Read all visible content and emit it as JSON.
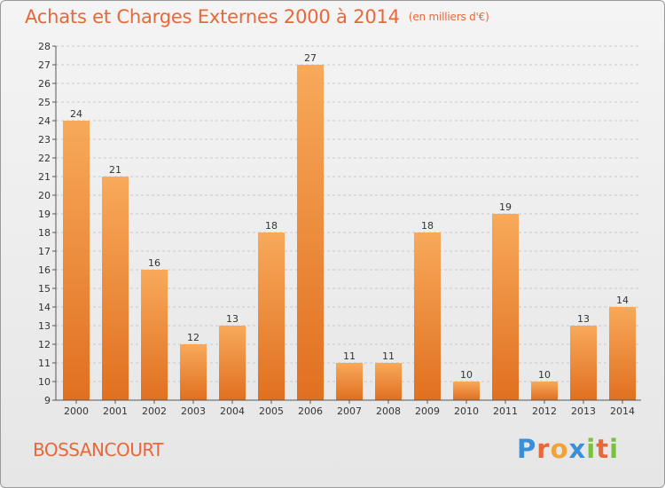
{
  "title": "Achats et Charges Externes 2000 à 2014",
  "unit": "(en milliers d'€)",
  "location": "BOSSANCOURT",
  "logo": {
    "text": "Proxiti",
    "letters": [
      "P",
      "r",
      "o",
      "x",
      "i",
      "t",
      "i"
    ],
    "colors": [
      "#3a8fd6",
      "#e8683a",
      "#f2a23a",
      "#3a8fd6",
      "#7ac142",
      "#e8683a",
      "#7ac142"
    ]
  },
  "colors": {
    "bar_top": "#f8a95a",
    "bar_bottom": "#e07020",
    "title": "#e8683a",
    "axis": "#555555"
  },
  "chart_data": {
    "type": "bar",
    "title": "Achats et Charges Externes 2000 à 2014",
    "subtitle": "(en milliers d'€)",
    "categories": [
      "2000",
      "2001",
      "2002",
      "2003",
      "2004",
      "2005",
      "2006",
      "2007",
      "2008",
      "2009",
      "2010",
      "2011",
      "2012",
      "2013",
      "2014"
    ],
    "values": [
      24,
      21,
      16,
      12,
      13,
      18,
      27,
      11,
      11,
      18,
      10,
      19,
      10,
      13,
      14
    ],
    "ylim": [
      9,
      28
    ],
    "yticks": [
      9,
      10,
      11,
      12,
      13,
      14,
      15,
      16,
      17,
      18,
      19,
      20,
      21,
      22,
      23,
      24,
      25,
      26,
      27,
      28
    ],
    "grid": true,
    "legend": "none"
  }
}
